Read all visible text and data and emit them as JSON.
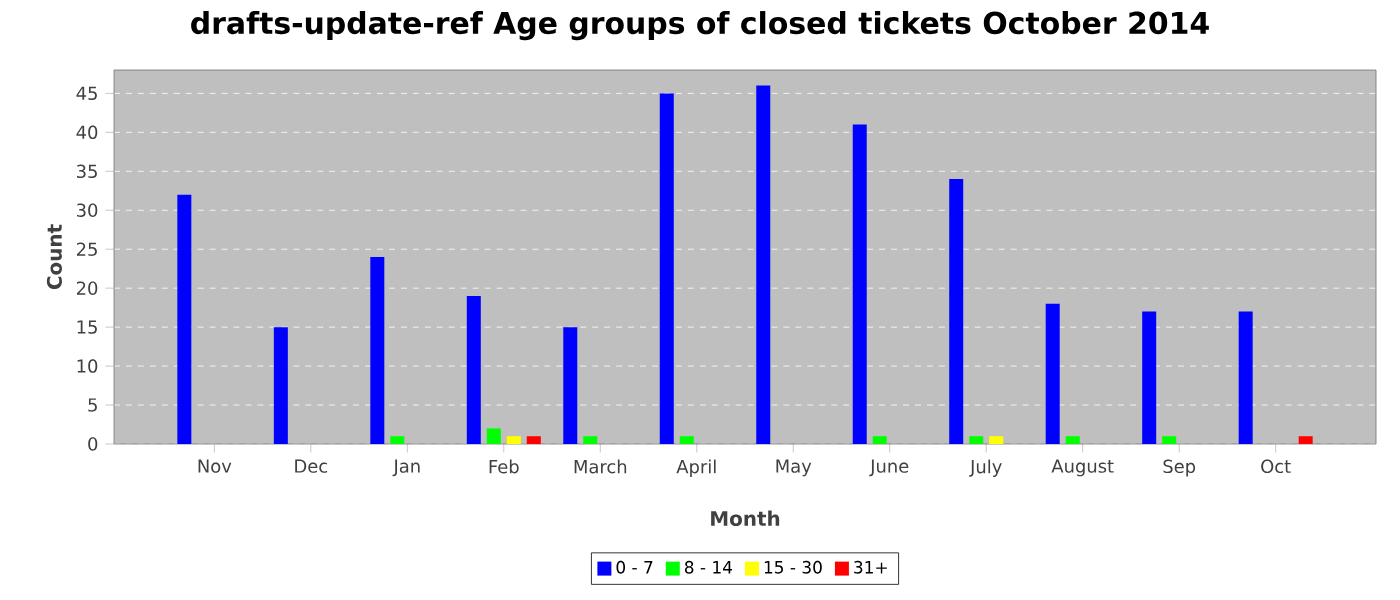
{
  "chart_data": {
    "type": "bar",
    "title": "drafts-update-ref Age groups of closed tickets October 2014",
    "xlabel": "Month",
    "ylabel": "Count",
    "categories": [
      "Nov",
      "Dec",
      "Jan",
      "Feb",
      "March",
      "April",
      "May",
      "June",
      "July",
      "August",
      "Sep",
      "Oct"
    ],
    "series": [
      {
        "name": "0 - 7",
        "color": "#0000ff",
        "values": [
          32,
          15,
          24,
          19,
          15,
          45,
          46,
          41,
          34,
          18,
          17,
          17
        ]
      },
      {
        "name": "8 - 14",
        "color": "#00ff00",
        "values": [
          0,
          0,
          1,
          2,
          1,
          1,
          0,
          1,
          1,
          1,
          1,
          0
        ]
      },
      {
        "name": "15 - 30",
        "color": "#ffff00",
        "values": [
          0,
          0,
          0,
          1,
          0,
          0,
          0,
          0,
          1,
          0,
          0,
          0
        ]
      },
      {
        "name": "31+",
        "color": "#ff0000",
        "values": [
          0,
          0,
          0,
          1,
          0,
          0,
          0,
          0,
          0,
          0,
          0,
          1
        ]
      }
    ],
    "ylim": [
      0,
      48
    ],
    "yticks": [
      0,
      5,
      10,
      15,
      20,
      25,
      30,
      35,
      40,
      45
    ],
    "grid": "y",
    "legend": "bottom"
  }
}
